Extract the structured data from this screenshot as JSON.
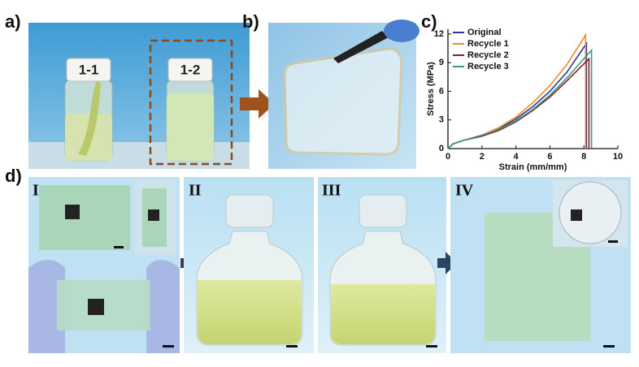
{
  "panels": {
    "a": "a)",
    "b": "b)",
    "c": "c)",
    "d": "d)",
    "vial_1": "1-1",
    "vial_2": "1-2",
    "step_1": "I",
    "step_2": "II",
    "step_3": "III",
    "step_4": "IV"
  },
  "chart_data": {
    "type": "line",
    "xlabel": "Strain (mm/mm)",
    "ylabel": "Stress (MPa)",
    "xlim": [
      0,
      10
    ],
    "xticks": [
      0,
      2,
      4,
      6,
      8,
      10
    ],
    "ylim": [
      0,
      12.5
    ],
    "yticks": [
      0,
      3,
      6,
      9,
      12
    ],
    "legend": "upper left",
    "series": [
      {
        "name": "Original",
        "color": "#2a3990",
        "x": [
          0,
          0.3,
          1,
          2,
          3,
          4,
          5,
          6,
          7,
          8.15,
          8.15
        ],
        "values": [
          0,
          0.5,
          0.9,
          1.4,
          2.1,
          3.1,
          4.4,
          6.0,
          8.0,
          11.0,
          0
        ]
      },
      {
        "name": "Recycle 1",
        "color": "#f08a24",
        "x": [
          0,
          0.3,
          1,
          2,
          3,
          4,
          5,
          6,
          7,
          8.1,
          8.1
        ],
        "values": [
          0,
          0.5,
          0.9,
          1.4,
          2.2,
          3.3,
          4.8,
          6.6,
          8.8,
          11.9,
          0
        ]
      },
      {
        "name": "Recycle 2",
        "color": "#8b1c2a",
        "x": [
          0,
          0.3,
          1,
          2,
          3,
          4,
          5,
          6,
          7,
          8.3,
          8.3
        ],
        "values": [
          0,
          0.5,
          0.9,
          1.3,
          1.9,
          2.8,
          4.0,
          5.4,
          7.1,
          9.4,
          0
        ]
      },
      {
        "name": "Recycle 3",
        "color": "#3a9a86",
        "x": [
          0,
          0.3,
          1,
          2,
          3,
          4,
          5,
          6,
          7,
          8.45,
          8.45
        ],
        "values": [
          0,
          0.5,
          0.9,
          1.4,
          2.0,
          2.9,
          4.1,
          5.6,
          7.4,
          10.3,
          0
        ]
      }
    ]
  }
}
